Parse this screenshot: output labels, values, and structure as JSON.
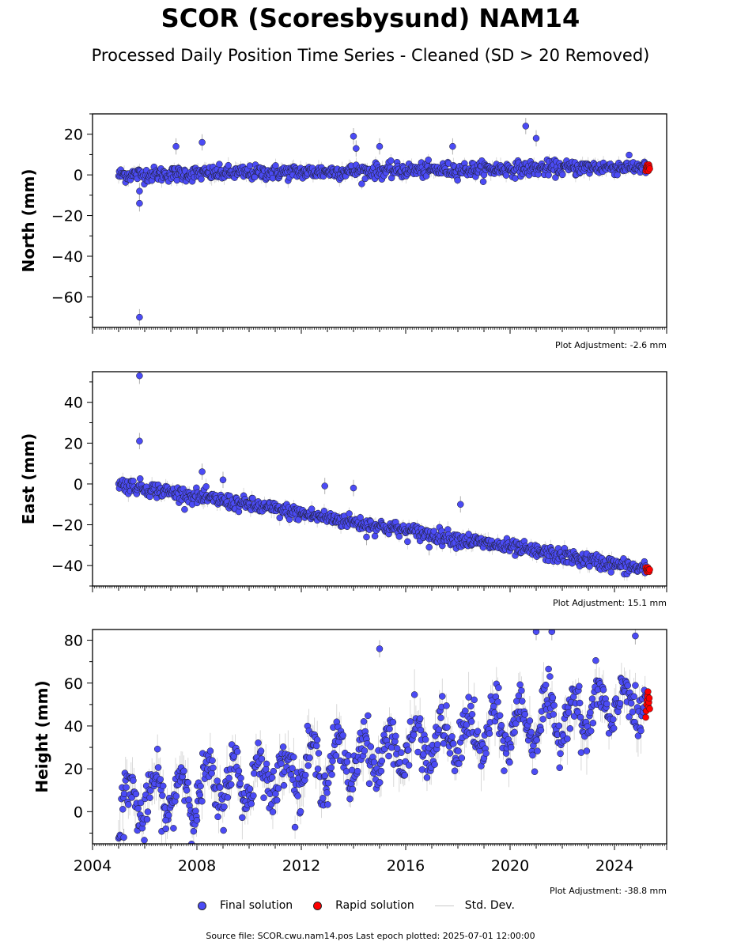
{
  "title": "SCOR (Scoresbysund) NAM14",
  "subtitle": "Processed Daily Position Time Series - Cleaned (SD > 20 Removed)",
  "legend": {
    "final": "Final solution",
    "rapid": "Rapid solution",
    "stddev": "Std. Dev."
  },
  "footer": "Source file: SCOR.cwu.nam14.pos  Last epoch plotted: 2025-07-01 12:00:00",
  "colors": {
    "final": "#4b4bf5",
    "rapid": "#ff0000",
    "stddev": "#b0b0b0",
    "edge": "#1a1a1a"
  },
  "chart_data": [
    {
      "type": "scatter",
      "ylabel": "North (mm)",
      "adjustment": "Plot Adjustment: -2.6 mm",
      "xlim": [
        2004,
        2026
      ],
      "ylim": [
        -75,
        30
      ],
      "yticks": [
        -60,
        -40,
        -20,
        0,
        20
      ],
      "xticks": [],
      "final_trend": {
        "start": [
          2005.0,
          0
        ],
        "end": [
          2025.2,
          4
        ]
      },
      "final_noise": 3,
      "final_range": [
        2005.0,
        2025.2
      ],
      "outliers": [
        [
          2005.8,
          -70
        ],
        [
          2005.8,
          -14
        ],
        [
          2005.8,
          -8
        ],
        [
          2014.0,
          19
        ],
        [
          2020.6,
          24
        ],
        [
          2007.2,
          14
        ],
        [
          2008.2,
          16
        ],
        [
          2014.1,
          13
        ],
        [
          2015.0,
          14
        ],
        [
          2017.8,
          14
        ],
        [
          2021.0,
          18
        ]
      ],
      "rapid_range": [
        2025.2,
        2025.35
      ],
      "rapid_values": [
        2,
        3,
        4,
        5,
        4,
        3,
        2,
        5,
        4,
        3
      ]
    },
    {
      "type": "scatter",
      "ylabel": "East (mm)",
      "adjustment": "Plot Adjustment: 15.1 mm",
      "xlim": [
        2004,
        2026
      ],
      "ylim": [
        -50,
        55
      ],
      "yticks": [
        -40,
        -20,
        0,
        20,
        40
      ],
      "xticks": [],
      "final_trend": {
        "start": [
          2005.0,
          0
        ],
        "end": [
          2025.2,
          -42
        ]
      },
      "final_noise": 3,
      "final_range": [
        2005.0,
        2025.2
      ],
      "outliers": [
        [
          2005.8,
          53
        ],
        [
          2005.8,
          21
        ],
        [
          2008.2,
          6
        ],
        [
          2009.0,
          2
        ],
        [
          2012.9,
          -1
        ],
        [
          2014.0,
          -2
        ],
        [
          2018.1,
          -10
        ],
        [
          2014.5,
          -26
        ],
        [
          2016.9,
          -31
        ]
      ],
      "rapid_range": [
        2025.2,
        2025.35
      ],
      "rapid_values": [
        -41,
        -42,
        -43,
        -42,
        -41,
        -42,
        -43,
        -42
      ]
    },
    {
      "type": "scatter",
      "ylabel": "Height (mm)",
      "adjustment": "Plot Adjustment: -38.8 mm",
      "xlim": [
        2004,
        2026
      ],
      "ylim": [
        -15,
        85
      ],
      "yticks": [
        0,
        20,
        40,
        60,
        80
      ],
      "xticks": [
        2004,
        2008,
        2012,
        2016,
        2020,
        2024
      ],
      "final_trend": {
        "start": [
          2005.0,
          3
        ],
        "end": [
          2025.2,
          52
        ]
      },
      "final_noise": 9,
      "final_seasonal": 10,
      "final_range": [
        2005.0,
        2025.2
      ],
      "outliers": [
        [
          2015.0,
          76
        ],
        [
          2021.0,
          84
        ],
        [
          2021.6,
          84
        ],
        [
          2024.8,
          82
        ],
        [
          2005.2,
          -12
        ],
        [
          2006.8,
          -4
        ],
        [
          2008.0,
          -4
        ]
      ],
      "rapid_range": [
        2025.2,
        2025.35
      ],
      "rapid_values": [
        44,
        47,
        50,
        52,
        54,
        56,
        49,
        51,
        53,
        48
      ]
    }
  ]
}
